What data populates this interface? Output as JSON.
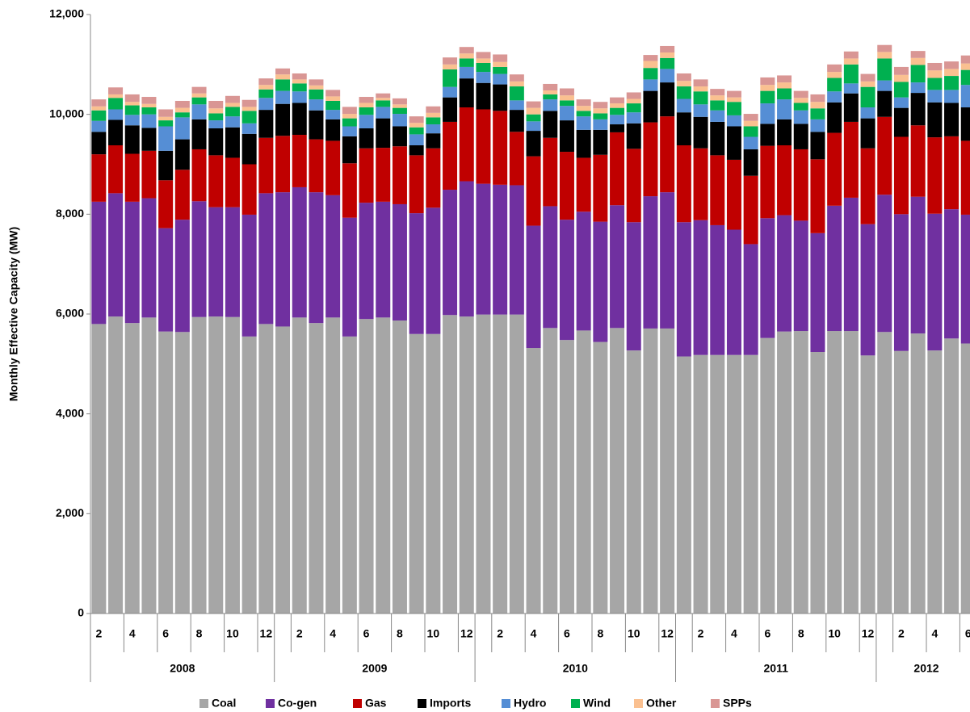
{
  "chart_data": {
    "type": "stacked_bar",
    "y_label": "Monthly Effective Capacity (MW)",
    "ylim": [
      0,
      12000
    ],
    "yticks": [
      0,
      {
        "value": 2000,
        "label": "2,000"
      },
      {
        "value": 4000,
        "label": "4,000"
      },
      {
        "value": 6000,
        "label": "6,000"
      },
      {
        "value": 8000,
        "label": "8,000"
      },
      {
        "value": 10000,
        "label": "10,000"
      },
      {
        "value": 12000,
        "label": "12,000"
      }
    ],
    "categories": [
      "2",
      null,
      "4",
      null,
      "6",
      null,
      "8",
      null,
      "10",
      null,
      "12",
      null,
      "2",
      null,
      "4",
      null,
      "6",
      null,
      "8",
      null,
      "10",
      null,
      "12",
      null,
      "2",
      null,
      "4",
      null,
      "6",
      null,
      "8",
      null,
      "10",
      null,
      "12",
      null,
      "2",
      null,
      "4",
      null,
      "6",
      null,
      "8",
      null,
      "10",
      null,
      "12",
      null,
      "2",
      null,
      "4",
      null,
      "6"
    ],
    "years": [
      {
        "label": "2008",
        "count": 11
      },
      {
        "label": "2009",
        "count": 12
      },
      {
        "label": "2010",
        "count": 12
      },
      {
        "label": "2011",
        "count": 12
      },
      {
        "label": "2012",
        "count": 6
      }
    ],
    "series": [
      {
        "name": "Coal",
        "color": "#a6a6a6",
        "values": [
          5800,
          5950,
          5820,
          5930,
          5650,
          5640,
          5940,
          5950,
          5940,
          5550,
          5800,
          5750,
          5930,
          5820,
          5930,
          5550,
          5900,
          5930,
          5870,
          5600,
          5600,
          5980,
          5950,
          5990,
          5990,
          5990,
          5320,
          5720,
          5480,
          5670,
          5440,
          5720,
          5270,
          5710,
          5710,
          5150,
          5180,
          5180,
          5180,
          5180,
          5520,
          5650,
          5660,
          5240,
          5660,
          5660,
          5170,
          5640,
          5260,
          5610,
          5270,
          5510,
          5410
        ]
      },
      {
        "name": "Co-gen",
        "color": "#7030a0",
        "values": [
          2450,
          2470,
          2430,
          2390,
          2070,
          2250,
          2320,
          2190,
          2200,
          2440,
          2620,
          2690,
          2610,
          2620,
          2450,
          2380,
          2330,
          2320,
          2330,
          2420,
          2530,
          2510,
          2710,
          2620,
          2600,
          2590,
          2450,
          2440,
          2410,
          2380,
          2410,
          2460,
          2570,
          2650,
          2730,
          2690,
          2700,
          2600,
          2510,
          2220,
          2400,
          2330,
          2210,
          2380,
          2510,
          2670,
          2630,
          2750,
          2740,
          2740,
          2740,
          2590,
          2580
        ]
      },
      {
        "name": "Gas",
        "color": "#c00000",
        "values": [
          950,
          960,
          960,
          950,
          960,
          1000,
          1040,
          1040,
          990,
          1010,
          1110,
          1130,
          1050,
          1060,
          1090,
          1090,
          1090,
          1080,
          1160,
          1160,
          1190,
          1360,
          1480,
          1490,
          1480,
          1070,
          1390,
          1370,
          1360,
          1080,
          1340,
          1460,
          1470,
          1480,
          1520,
          1540,
          1440,
          1400,
          1400,
          1370,
          1450,
          1400,
          1430,
          1480,
          1460,
          1520,
          1520,
          1560,
          1550,
          1430,
          1530,
          1460,
          1480
        ]
      },
      {
        "name": "Imports",
        "color": "#000000",
        "values": [
          450,
          510,
          570,
          460,
          590,
          610,
          600,
          540,
          610,
          610,
          560,
          640,
          640,
          580,
          430,
          540,
          400,
          590,
          400,
          200,
          300,
          490,
          580,
          530,
          530,
          440,
          510,
          540,
          630,
          560,
          500,
          160,
          510,
          630,
          680,
          660,
          630,
          670,
          670,
          530,
          440,
          520,
          510,
          550,
          610,
          570,
          600,
          520,
          580,
          650,
          700,
          670,
          670
        ]
      },
      {
        "name": "Hydro",
        "color": "#558ed5",
        "values": [
          220,
          210,
          210,
          270,
          490,
          440,
          300,
          160,
          220,
          210,
          240,
          260,
          230,
          220,
          190,
          200,
          270,
          230,
          250,
          220,
          180,
          210,
          230,
          220,
          210,
          190,
          190,
          230,
          290,
          270,
          210,
          190,
          220,
          230,
          270,
          270,
          250,
          230,
          220,
          250,
          410,
          400,
          270,
          250,
          220,
          200,
          220,
          210,
          210,
          210,
          250,
          260,
          450
        ]
      },
      {
        "name": "Wind",
        "color": "#00b050",
        "values": [
          210,
          230,
          190,
          140,
          120,
          100,
          140,
          140,
          190,
          250,
          170,
          230,
          160,
          200,
          180,
          160,
          150,
          130,
          120,
          140,
          140,
          350,
          170,
          180,
          140,
          280,
          140,
          100,
          110,
          110,
          120,
          140,
          180,
          230,
          220,
          250,
          260,
          200,
          270,
          210,
          250,
          220,
          150,
          220,
          270,
          380,
          410,
          440,
          310,
          350,
          240,
          280,
          300
        ]
      },
      {
        "name": "Other",
        "color": "#fac090",
        "values": [
          80,
          70,
          70,
          70,
          70,
          90,
          80,
          100,
          80,
          80,
          90,
          100,
          80,
          80,
          90,
          90,
          90,
          50,
          70,
          90,
          90,
          100,
          100,
          90,
          100,
          100,
          130,
          80,
          100,
          100,
          100,
          90,
          90,
          140,
          110,
          110,
          100,
          100,
          90,
          110,
          120,
          120,
          100,
          130,
          120,
          120,
          110,
          130,
          140,
          140,
          150,
          140,
          130
        ]
      },
      {
        "name": "SPPs",
        "color": "#d99694",
        "values": [
          140,
          140,
          150,
          140,
          150,
          140,
          130,
          150,
          140,
          140,
          130,
          120,
          120,
          120,
          130,
          140,
          120,
          90,
          120,
          130,
          130,
          140,
          130,
          130,
          150,
          140,
          130,
          130,
          140,
          130,
          130,
          120,
          130,
          120,
          130,
          150,
          140,
          130,
          130,
          140,
          150,
          140,
          140,
          150,
          150,
          140,
          150,
          140,
          160,
          140,
          150,
          150,
          160
        ]
      }
    ]
  }
}
